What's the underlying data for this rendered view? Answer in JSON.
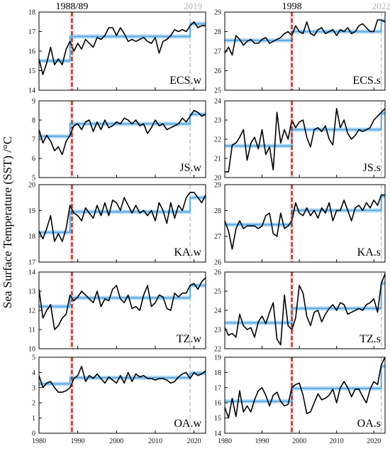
{
  "figure": {
    "ylabel": "Sea Surface Temperature (SST) /°C",
    "col_headers": {
      "left_break": "1988/89",
      "left_recent": "2019",
      "right_break": "1998",
      "right_recent": "2022"
    }
  },
  "colors": {
    "series": "#000000",
    "regime_mean": "#5aa9e6",
    "regime_band": "#b8ddf5",
    "break_line": "#8b2a0a",
    "break_band": "#f6d7dc",
    "recent_line": "#c8c8cc"
  },
  "chart_data": [
    {
      "id": "ECS.w",
      "type": "line",
      "title": "ECS.w",
      "xlim": [
        1980,
        2023
      ],
      "ylim": [
        14,
        18
      ],
      "yticks": [
        14,
        15,
        16,
        17,
        18
      ],
      "x_start": 1980,
      "values": [
        15.6,
        14.8,
        15.4,
        16.2,
        15.3,
        15.6,
        15.3,
        16.1,
        16.5,
        16.0,
        16.4,
        16.1,
        16.6,
        16.4,
        16.2,
        16.7,
        16.6,
        16.8,
        17.2,
        17.2,
        16.8,
        17.2,
        16.9,
        16.5,
        16.6,
        16.5,
        16.6,
        16.7,
        16.5,
        16.4,
        16.7,
        15.9,
        16.5,
        16.6,
        16.8,
        17.1,
        17.0,
        17.1,
        17.0,
        17.3,
        17.5,
        17.2,
        17.3,
        17.3
      ],
      "regimes": [
        {
          "start": 1980,
          "end": 1988,
          "mean": 15.5
        },
        {
          "start": 1988,
          "end": 2019,
          "mean": 16.75
        },
        {
          "start": 2019,
          "end": 2023,
          "mean": 17.4
        }
      ]
    },
    {
      "id": "ECS.s",
      "type": "line",
      "title": "ECS.s",
      "xlim": [
        1980,
        2023
      ],
      "ylim": [
        25,
        29
      ],
      "yticks": [
        25,
        26,
        27,
        28,
        29
      ],
      "x_start": 1980,
      "values": [
        26.9,
        27.2,
        26.8,
        27.8,
        27.6,
        27.3,
        27.5,
        27.6,
        27.4,
        27.4,
        27.6,
        27.7,
        27.4,
        27.5,
        27.6,
        27.7,
        27.9,
        28.0,
        27.8,
        28.3,
        28.0,
        27.9,
        28.5,
        27.9,
        27.8,
        28.1,
        28.2,
        27.9,
        28.0,
        28.1,
        27.8,
        28.1,
        28.0,
        28.2,
        27.9,
        28.0,
        28.3,
        28.4,
        28.2,
        28.0,
        28.0,
        28.6,
        28.6,
        28.5
      ],
      "regimes": [
        {
          "start": 1980,
          "end": 1998,
          "mean": 27.55
        },
        {
          "start": 1998,
          "end": 2022,
          "mean": 28.0
        },
        {
          "start": 2022,
          "end": 2023,
          "mean": 28.55
        }
      ]
    },
    {
      "id": "JS.w",
      "type": "line",
      "title": "JS.w",
      "xlim": [
        1980,
        2023
      ],
      "ylim": [
        5,
        9
      ],
      "yticks": [
        5,
        6,
        7,
        8,
        9
      ],
      "x_start": 1980,
      "values": [
        7.5,
        6.8,
        7.2,
        6.9,
        6.4,
        6.6,
        6.2,
        6.9,
        7.2,
        7.7,
        7.8,
        7.5,
        7.9,
        8.0,
        7.4,
        7.9,
        7.5,
        8.0,
        7.6,
        7.7,
        7.9,
        7.8,
        8.1,
        8.0,
        7.8,
        8.0,
        7.7,
        7.8,
        7.3,
        7.6,
        8.0,
        7.7,
        7.8,
        7.5,
        7.6,
        7.7,
        7.8,
        8.1,
        7.9,
        8.2,
        8.5,
        8.4,
        8.2,
        8.3
      ],
      "regimes": [
        {
          "start": 1980,
          "end": 1988,
          "mean": 7.15
        },
        {
          "start": 1988,
          "end": 2019,
          "mean": 7.8
        },
        {
          "start": 2019,
          "end": 2023,
          "mean": 8.3
        }
      ]
    },
    {
      "id": "JS.s",
      "type": "line",
      "title": "JS.s",
      "xlim": [
        1980,
        2023
      ],
      "ylim": [
        20,
        24
      ],
      "yticks": [
        20,
        21,
        22,
        23,
        24
      ],
      "x_start": 1980,
      "values": [
        20.3,
        20.3,
        21.7,
        21.8,
        22.1,
        22.5,
        20.9,
        21.8,
        22.1,
        21.5,
        22.5,
        21.2,
        21.6,
        20.4,
        23.4,
        21.8,
        22.5,
        22.0,
        23.0,
        22.6,
        22.9,
        23.0,
        22.1,
        21.6,
        22.5,
        22.6,
        22.4,
        22.7,
        22.0,
        21.7,
        23.6,
        22.6,
        23.0,
        22.3,
        22.0,
        22.2,
        22.5,
        22.4,
        22.5,
        22.6,
        23.0,
        23.2,
        23.4,
        23.6
      ],
      "regimes": [
        {
          "start": 1980,
          "end": 1998,
          "mean": 21.65
        },
        {
          "start": 1998,
          "end": 2022,
          "mean": 22.5
        },
        {
          "start": 2022,
          "end": 2023,
          "mean": 23.35
        }
      ]
    },
    {
      "id": "KA.w",
      "type": "line",
      "title": "KA.w",
      "xlim": [
        1980,
        2023
      ],
      "ylim": [
        17,
        20
      ],
      "yticks": [
        17,
        18,
        19,
        20
      ],
      "x_start": 1980,
      "values": [
        18.2,
        17.9,
        18.3,
        18.8,
        17.8,
        18.1,
        17.8,
        18.3,
        19.2,
        18.9,
        18.8,
        18.6,
        19.1,
        18.9,
        18.7,
        19.2,
        18.8,
        19.3,
        18.8,
        19.4,
        19.3,
        19.0,
        19.5,
        19.2,
        18.9,
        19.2,
        18.9,
        19.0,
        18.8,
        19.0,
        18.6,
        19.3,
        19.0,
        18.5,
        19.3,
        18.7,
        19.2,
        19.0,
        19.5,
        19.7,
        19.7,
        19.5,
        19.3,
        19.6
      ],
      "regimes": [
        {
          "start": 1980,
          "end": 1988,
          "mean": 18.15
        },
        {
          "start": 1988,
          "end": 2019,
          "mean": 18.95
        },
        {
          "start": 2019,
          "end": 2023,
          "mean": 19.5
        }
      ]
    },
    {
      "id": "KA.s",
      "type": "line",
      "title": "KA.s",
      "xlim": [
        1980,
        2023
      ],
      "ylim": [
        26,
        29
      ],
      "yticks": [
        26,
        27,
        28,
        29
      ],
      "x_start": 1980,
      "values": [
        27.6,
        27.2,
        26.5,
        27.3,
        27.6,
        27.3,
        27.4,
        27.4,
        27.4,
        27.3,
        27.4,
        27.8,
        27.9,
        27.1,
        27.0,
        27.9,
        27.3,
        27.4,
        27.6,
        28.3,
        27.9,
        27.8,
        28.1,
        27.8,
        28.0,
        27.7,
        28.1,
        27.9,
        28.3,
        27.6,
        28.0,
        28.0,
        28.4,
        28.0,
        27.6,
        28.1,
        28.2,
        28.0,
        28.3,
        28.1,
        28.4,
        28.2,
        28.6,
        28.6
      ],
      "regimes": [
        {
          "start": 1980,
          "end": 1998,
          "mean": 27.45
        },
        {
          "start": 1998,
          "end": 2022,
          "mean": 28.0
        },
        {
          "start": 2022,
          "end": 2023,
          "mean": 28.55
        }
      ]
    },
    {
      "id": "TZ.w",
      "type": "line",
      "title": "TZ.w",
      "xlim": [
        1980,
        2023
      ],
      "ylim": [
        10,
        14
      ],
      "yticks": [
        10,
        11,
        12,
        13,
        14
      ],
      "x_start": 1980,
      "values": [
        13.1,
        11.6,
        12.0,
        12.3,
        11.0,
        11.2,
        11.6,
        11.8,
        12.8,
        12.5,
        12.7,
        13.0,
        12.8,
        12.6,
        12.4,
        13.0,
        12.2,
        12.6,
        12.5,
        13.1,
        13.3,
        12.6,
        12.4,
        12.8,
        12.1,
        12.2,
        12.0,
        12.8,
        13.3,
        12.2,
        12.4,
        12.8,
        12.7,
        12.1,
        12.0,
        12.9,
        12.7,
        12.9,
        12.9,
        13.3,
        13.4,
        13.1,
        13.5,
        13.7
      ],
      "regimes": [
        {
          "start": 1980,
          "end": 1988,
          "mean": 12.2
        },
        {
          "start": 1988,
          "end": 2019,
          "mean": 12.65
        },
        {
          "start": 2019,
          "end": 2023,
          "mean": 13.3
        }
      ]
    },
    {
      "id": "TZ.s",
      "type": "line",
      "title": "TZ.s",
      "xlim": [
        1980,
        2023
      ],
      "ylim": [
        22,
        26
      ],
      "yticks": [
        22,
        23,
        24,
        25,
        26
      ],
      "x_start": 1980,
      "values": [
        23.1,
        22.7,
        22.8,
        22.6,
        23.8,
        23.2,
        23.0,
        23.1,
        22.6,
        23.4,
        23.7,
        23.3,
        23.9,
        24.4,
        22.5,
        22.2,
        24.8,
        23.2,
        23.0,
        23.6,
        25.3,
        24.9,
        23.7,
        23.2,
        23.9,
        24.0,
        23.4,
        23.8,
        24.1,
        24.3,
        24.0,
        24.4,
        24.3,
        23.8,
        23.9,
        24.0,
        24.1,
        24.0,
        24.3,
        24.4,
        24.6,
        23.9,
        25.4,
        25.9
      ],
      "regimes": [
        {
          "start": 1980,
          "end": 1998,
          "mean": 23.35
        },
        {
          "start": 1998,
          "end": 2022,
          "mean": 24.1
        },
        {
          "start": 2022,
          "end": 2023,
          "mean": 25.4
        }
      ]
    },
    {
      "id": "OA.w",
      "type": "line",
      "title": "OA.w",
      "xlim": [
        1980,
        2023
      ],
      "ylim": [
        0,
        5
      ],
      "yticks": [
        0,
        1,
        2,
        3,
        4,
        5
      ],
      "x_start": 1980,
      "values": [
        3.8,
        3.0,
        3.3,
        3.4,
        3.0,
        2.7,
        2.7,
        2.8,
        3.0,
        3.6,
        3.8,
        4.4,
        3.4,
        3.8,
        3.6,
        3.9,
        3.6,
        3.3,
        3.7,
        3.5,
        3.3,
        3.8,
        3.3,
        4.0,
        3.4,
        3.9,
        3.7,
        3.8,
        3.6,
        3.6,
        3.5,
        3.6,
        3.6,
        3.5,
        3.3,
        3.4,
        3.7,
        3.9,
        4.0,
        3.6,
        4.0,
        3.8,
        3.9,
        4.1
      ],
      "regimes": [
        {
          "start": 1980,
          "end": 1988,
          "mean": 3.25
        },
        {
          "start": 1988,
          "end": 2019,
          "mean": 3.65
        },
        {
          "start": 2019,
          "end": 2023,
          "mean": 3.95
        }
      ]
    },
    {
      "id": "OA.s",
      "type": "line",
      "title": "OA.s",
      "xlim": [
        1980,
        2023
      ],
      "ylim": [
        14,
        19
      ],
      "yticks": [
        14,
        15,
        16,
        17,
        18,
        19
      ],
      "x_start": 1980,
      "values": [
        15.7,
        15.0,
        16.3,
        15.1,
        16.8,
        15.4,
        15.8,
        15.4,
        16.2,
        16.8,
        17.0,
        16.5,
        15.8,
        16.5,
        16.7,
        16.1,
        15.8,
        15.9,
        17.0,
        17.2,
        17.3,
        16.5,
        15.3,
        15.4,
        16.0,
        16.6,
        16.2,
        16.3,
        16.5,
        16.9,
        16.0,
        17.0,
        17.4,
        17.0,
        16.4,
        16.9,
        16.9,
        16.4,
        16.0,
        16.9,
        17.4,
        17.2,
        18.5,
        19.0
      ],
      "regimes": [
        {
          "start": 1980,
          "end": 1998,
          "mean": 16.1
        },
        {
          "start": 1998,
          "end": 2022,
          "mean": 16.95
        },
        {
          "start": 2022,
          "end": 2023,
          "mean": 18.4
        }
      ]
    }
  ]
}
